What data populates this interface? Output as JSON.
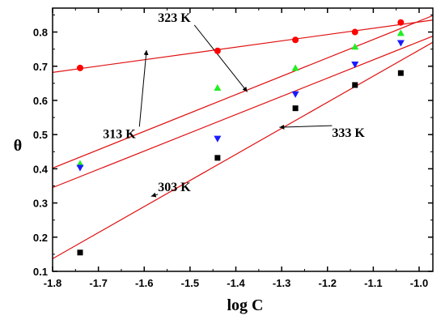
{
  "chart_data": {
    "type": "scatter",
    "xlabel": "log C",
    "ylabel": "θ",
    "xlim": [
      -1.8,
      -0.97
    ],
    "ylim": [
      0.1,
      0.87
    ],
    "xticks": [
      -1.8,
      -1.7,
      -1.6,
      -1.5,
      -1.4,
      -1.3,
      -1.2,
      -1.1,
      -1.0
    ],
    "xtick_labels": [
      "-1.8",
      "-1.7",
      "-1.6",
      "-1.5",
      "-1.4",
      "-1.3",
      "-1.2",
      "-1.1",
      "-1.0"
    ],
    "yticks": [
      0.1,
      0.2,
      0.3,
      0.4,
      0.5,
      0.6,
      0.7,
      0.8
    ],
    "ytick_labels": [
      "0.1",
      "0.2",
      "0.3",
      "0.4",
      "0.5",
      "0.6",
      "0.7",
      "0.8"
    ],
    "grid": false,
    "x": [
      -1.74,
      -1.44,
      -1.27,
      -1.14,
      -1.04
    ],
    "series": [
      {
        "name": "303 K",
        "marker": "square",
        "color": "#000000",
        "values": [
          0.155,
          0.432,
          0.577,
          0.645,
          0.68
        ],
        "fit": [
          [
            -1.8,
            0.137
          ],
          [
            -0.97,
            0.77
          ]
        ]
      },
      {
        "name": "313 K",
        "marker": "circle",
        "color": "#ff0000",
        "values": [
          0.695,
          0.745,
          0.777,
          0.8,
          0.828
        ],
        "fit": [
          [
            -1.8,
            0.682
          ],
          [
            -0.97,
            0.835
          ]
        ]
      },
      {
        "name": "323 K",
        "marker": "triangle-up",
        "color": "#22ee22",
        "values": [
          0.415,
          0.637,
          0.695,
          0.757,
          0.797
        ],
        "fit": [
          [
            -1.8,
            0.402
          ],
          [
            -0.97,
            0.848
          ]
        ]
      },
      {
        "name": "333 K",
        "marker": "triangle-down",
        "color": "#1a1aff",
        "values": [
          0.403,
          0.488,
          0.618,
          0.705,
          0.768
        ],
        "fit": [
          [
            -1.8,
            0.345
          ],
          [
            -0.97,
            0.788
          ]
        ]
      }
    ],
    "fit_line_color": "#e01010",
    "annotations": [
      {
        "text": "323 K",
        "label_at": [
          -1.57,
          0.83
        ],
        "arrow_to": [
          -1.375,
          0.625
        ]
      },
      {
        "text": "313 K",
        "label_at": [
          -1.69,
          0.49
        ],
        "arrow_to": [
          -1.595,
          0.747
        ]
      },
      {
        "text": "333 K",
        "label_at": [
          -1.19,
          0.493
        ],
        "arrow_to": [
          -1.305,
          0.5215
        ]
      },
      {
        "text": "303 K",
        "label_at": [
          -1.57,
          0.335
        ],
        "arrow_to": [
          -1.585,
          0.3195
        ]
      }
    ]
  }
}
